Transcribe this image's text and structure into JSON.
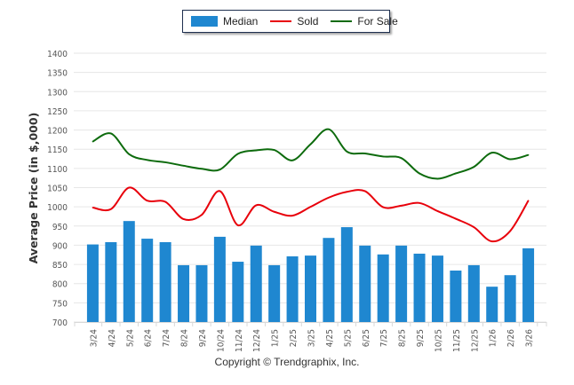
{
  "chart_data": {
    "type": "bar",
    "title": "",
    "xlabel": "",
    "ylabel": "Average Price (in $,000)",
    "ylim": [
      700,
      1400
    ],
    "yticks": [
      700,
      750,
      800,
      850,
      900,
      950,
      1000,
      1050,
      1100,
      1150,
      1200,
      1250,
      1300,
      1350,
      1400
    ],
    "grid": true,
    "legend_position": "top-center",
    "categories": [
      "3/24",
      "4/24",
      "5/24",
      "6/24",
      "7/24",
      "8/24",
      "9/24",
      "10/24",
      "11/24",
      "12/24",
      "1/25",
      "2/25",
      "3/25",
      "4/25",
      "5/25",
      "6/25",
      "7/25",
      "8/25",
      "9/25",
      "10/25",
      "11/25",
      "12/25",
      "1/26",
      "2/26",
      "3/26"
    ],
    "series": [
      {
        "name": "Median",
        "type": "bar",
        "color": "#1f87d0",
        "values": [
          902,
          908,
          963,
          917,
          908,
          848,
          848,
          922,
          857,
          899,
          848,
          871,
          873,
          919,
          947,
          899,
          876,
          899,
          878,
          873,
          834,
          848,
          792,
          822,
          892
        ]
      },
      {
        "name": "Sold",
        "type": "line",
        "color": "#e8000b",
        "values": [
          998,
          994,
          1050,
          1016,
          1013,
          968,
          979,
          1041,
          952,
          1004,
          987,
          977,
          1000,
          1024,
          1039,
          1041,
          999,
          1003,
          1010,
          989,
          969,
          947,
          910,
          937,
          1016
        ]
      },
      {
        "name": "For Sale",
        "type": "line",
        "color": "#0d6b0d",
        "values": [
          1170,
          1191,
          1137,
          1122,
          1116,
          1107,
          1099,
          1097,
          1138,
          1147,
          1148,
          1121,
          1163,
          1202,
          1144,
          1139,
          1131,
          1127,
          1087,
          1073,
          1087,
          1104,
          1141,
          1124,
          1135
        ]
      }
    ]
  },
  "legend": {
    "items": [
      {
        "label": "Median",
        "color": "#1f87d0"
      },
      {
        "label": "Sold",
        "color": "#e8000b"
      },
      {
        "label": "For Sale",
        "color": "#0d6b0d"
      }
    ]
  },
  "footer": {
    "copyright": "Copyright © Trendgraphix, Inc."
  }
}
